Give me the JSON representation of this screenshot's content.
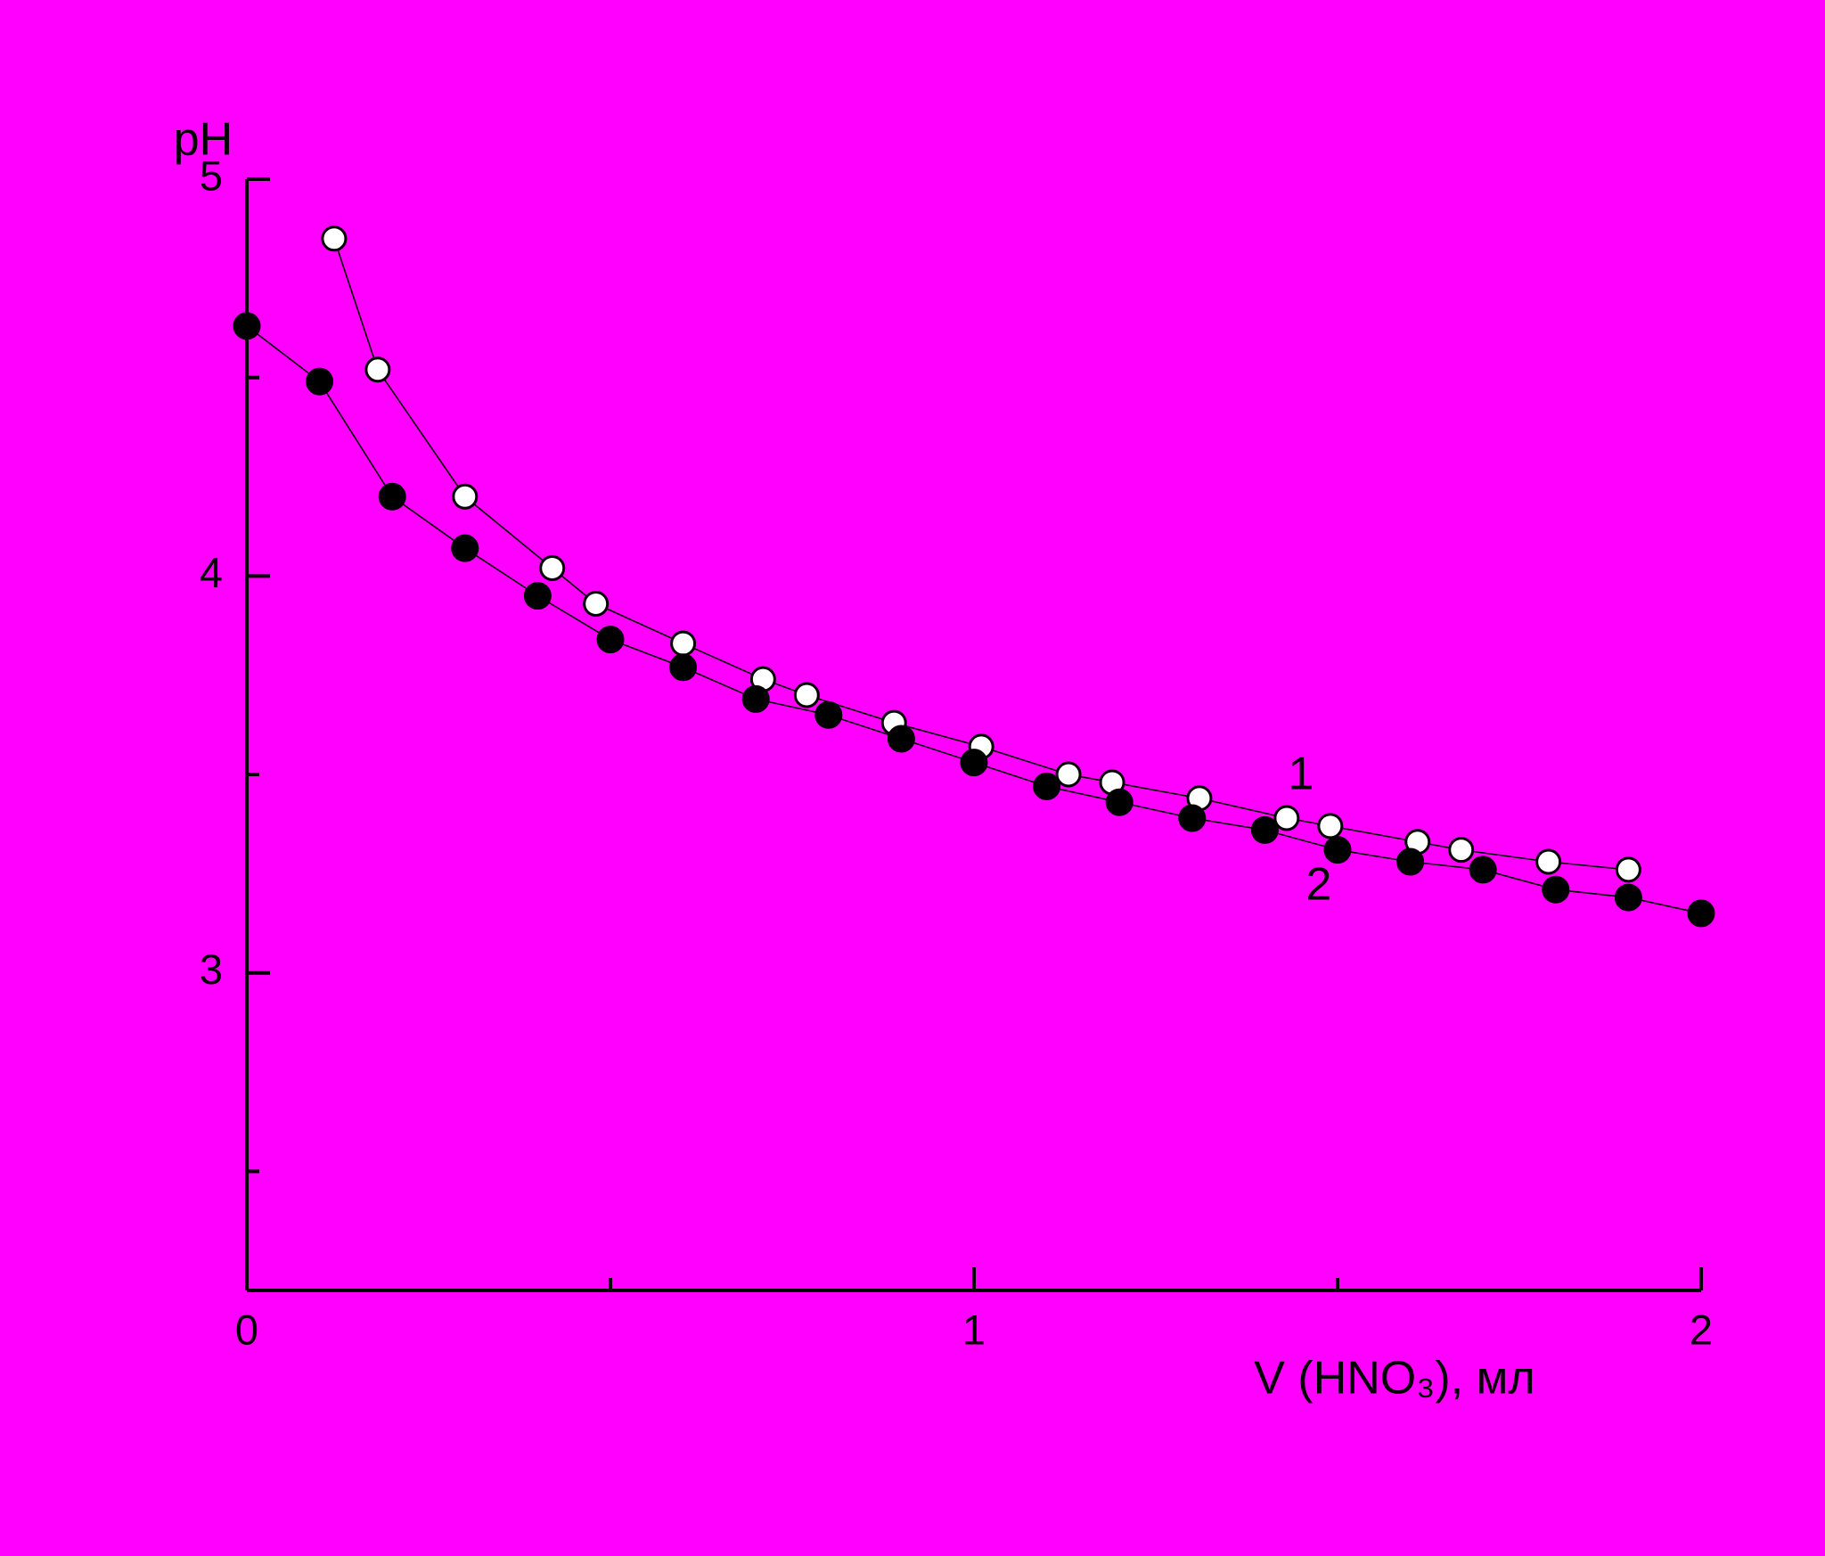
{
  "chart_data": {
    "type": "scatter-line",
    "ylabel": "pH",
    "xlabel": "V (HNO₃), мл",
    "xlim": [
      0,
      2
    ],
    "xticks": [
      0,
      1,
      2
    ],
    "xticks_minor": [
      0.5,
      1.5
    ],
    "ylim": [
      2.2,
      5
    ],
    "yticks": [
      3,
      4,
      5
    ],
    "yticks_minor": [
      2.5,
      3.5,
      4.5
    ],
    "background": "#ff00ff",
    "series": [
      {
        "name": "1",
        "color": "#ffffff",
        "marker": "open",
        "x": [
          0.12,
          0.18,
          0.3,
          0.42,
          0.48,
          0.6,
          0.71,
          0.77,
          0.89,
          1.01,
          1.13,
          1.19,
          1.31,
          1.43,
          1.49,
          1.61,
          1.67,
          1.79,
          1.9
        ],
        "values": [
          4.85,
          4.52,
          4.2,
          4.02,
          3.93,
          3.83,
          3.74,
          3.7,
          3.63,
          3.57,
          3.5,
          3.48,
          3.44,
          3.39,
          3.37,
          3.33,
          3.31,
          3.28,
          3.26
        ]
      },
      {
        "name": "2",
        "color": "#000000",
        "marker": "filled",
        "x": [
          0,
          0.1,
          0.2,
          0.3,
          0.4,
          0.5,
          0.6,
          0.7,
          0.8,
          0.9,
          1.0,
          1.1,
          1.2,
          1.3,
          1.4,
          1.5,
          1.6,
          1.7,
          1.8,
          1.9,
          2.0
        ],
        "values": [
          4.63,
          4.49,
          4.2,
          4.07,
          3.95,
          3.84,
          3.77,
          3.69,
          3.65,
          3.59,
          3.53,
          3.47,
          3.43,
          3.39,
          3.36,
          3.31,
          3.28,
          3.26,
          3.21,
          3.19,
          3.15
        ]
      }
    ]
  }
}
